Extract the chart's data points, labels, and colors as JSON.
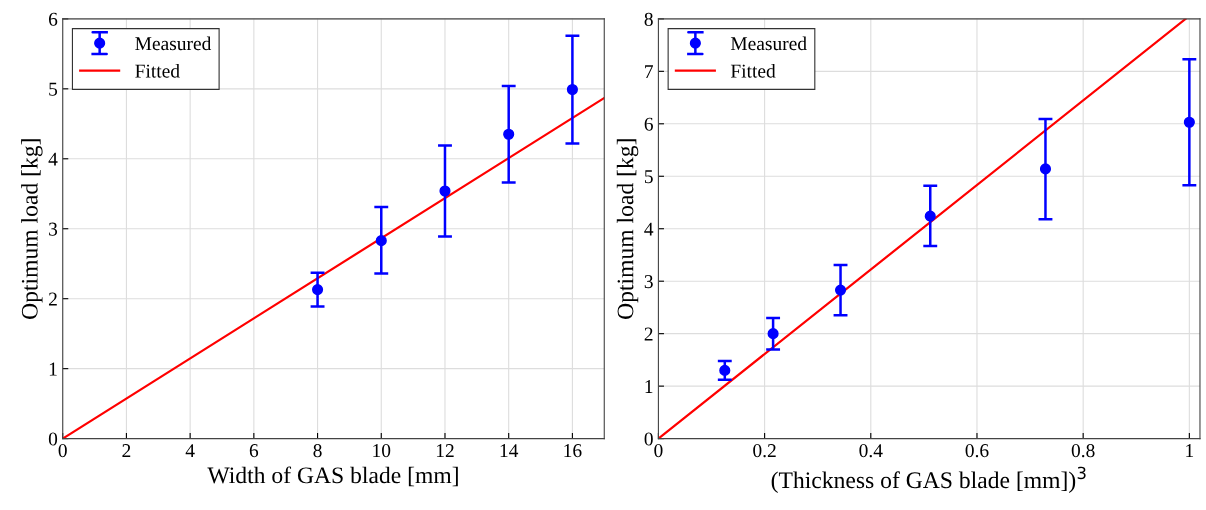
{
  "chart_data": [
    {
      "type": "scatter",
      "xlabel": "Width of GAS blade [mm]",
      "ylabel": "Optimum load [kg]",
      "xlim": [
        0,
        17
      ],
      "ylim": [
        0,
        6
      ],
      "xticks": [
        0,
        2,
        4,
        6,
        8,
        10,
        12,
        14,
        16
      ],
      "yticks": [
        0,
        1,
        2,
        3,
        4,
        5,
        6
      ],
      "grid": true,
      "legend": "top left",
      "series": [
        {
          "name": "Measured",
          "marker": "circle",
          "color": "#0000ff",
          "x": [
            8,
            10,
            12,
            14,
            16
          ],
          "values": [
            2.13,
            2.83,
            3.54,
            4.35,
            4.99
          ],
          "errors": [
            [
              1.89,
              2.37
            ],
            [
              2.36,
              3.31
            ],
            [
              2.89,
              4.19
            ],
            [
              3.66,
              5.04
            ],
            [
              4.22,
              5.76
            ]
          ]
        },
        {
          "name": "Fitted",
          "type": "line",
          "color": "#ff0000",
          "x": [
            0,
            17
          ],
          "values": [
            0,
            4.87
          ]
        }
      ]
    },
    {
      "type": "scatter",
      "xlabel": "(Thickness of GAS blade [mm])$^{3}$",
      "ylabel": "Optimum load [kg]",
      "xlim": [
        0,
        1.02
      ],
      "ylim": [
        0,
        8
      ],
      "xticks": [
        0,
        0.2,
        0.4,
        0.6,
        0.8,
        1
      ],
      "yticks": [
        0,
        1,
        2,
        3,
        4,
        5,
        6,
        7,
        8
      ],
      "grid": true,
      "legend": "top left",
      "series": [
        {
          "name": "Measured",
          "marker": "circle",
          "color": "#0000ff",
          "x": [
            0.125,
            0.216,
            0.343,
            0.512,
            0.729,
            1.0
          ],
          "values": [
            1.3,
            2.0,
            2.83,
            4.24,
            5.14,
            6.03
          ],
          "errors": [
            [
              1.12,
              1.48
            ],
            [
              1.7,
              2.3
            ],
            [
              2.35,
              3.31
            ],
            [
              3.67,
              4.82
            ],
            [
              4.18,
              6.09
            ],
            [
              4.83,
              7.23
            ]
          ]
        },
        {
          "name": "Fitted",
          "type": "line",
          "color": "#ff0000",
          "x": [
            0,
            0.993
          ],
          "values": [
            0,
            8
          ]
        }
      ]
    }
  ]
}
